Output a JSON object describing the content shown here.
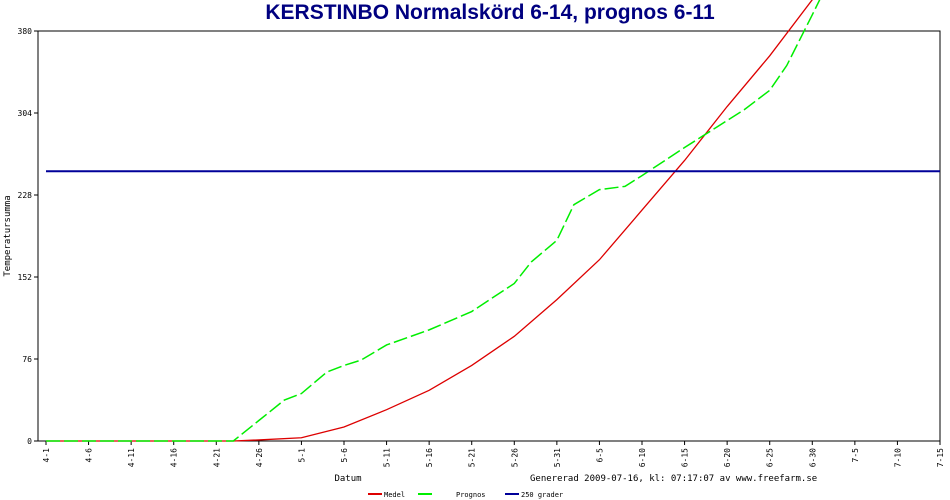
{
  "chart_data": {
    "type": "line",
    "title": "KERSTINBO Normalskörd 6-14, prognos 6-11",
    "x_label": "Datum",
    "y_label": "Temperatursumma",
    "footer": "Genererad 2009-07-16, kl: 07:17:07 av www.freefarm.se",
    "xlim": [
      0,
      105
    ],
    "ylim": [
      0,
      380
    ],
    "xticks": [
      {
        "value": 0,
        "label": "4-1"
      },
      {
        "value": 5,
        "label": "4-6"
      },
      {
        "value": 10,
        "label": "4-11"
      },
      {
        "value": 15,
        "label": "4-16"
      },
      {
        "value": 20,
        "label": "4-21"
      },
      {
        "value": 25,
        "label": "4-26"
      },
      {
        "value": 30,
        "label": "5-1"
      },
      {
        "value": 35,
        "label": "5-6"
      },
      {
        "value": 40,
        "label": "5-11"
      },
      {
        "value": 45,
        "label": "5-16"
      },
      {
        "value": 50,
        "label": "5-21"
      },
      {
        "value": 55,
        "label": "5-26"
      },
      {
        "value": 60,
        "label": "5-31"
      },
      {
        "value": 65,
        "label": "6-5"
      },
      {
        "value": 70,
        "label": "6-10"
      },
      {
        "value": 75,
        "label": "6-15"
      },
      {
        "value": 80,
        "label": "6-20"
      },
      {
        "value": 85,
        "label": "6-25"
      },
      {
        "value": 90,
        "label": "6-30"
      },
      {
        "value": 95,
        "label": "7-5"
      },
      {
        "value": 100,
        "label": "7-10"
      },
      {
        "value": 105,
        "label": "7-15"
      }
    ],
    "yticks": [
      0,
      76,
      152,
      228,
      304,
      380
    ],
    "series": [
      {
        "name": "Medel",
        "color": "#dd0000",
        "dashed": false,
        "x": [
          0,
          22,
          25,
          30,
          35,
          40,
          45,
          50,
          55,
          60,
          65,
          70,
          75,
          80,
          85,
          90
        ],
        "values": [
          0,
          0,
          1,
          3,
          13,
          29,
          47,
          70,
          97,
          131,
          168,
          214,
          260,
          310,
          357,
          409
        ]
      },
      {
        "name": "Prognos",
        "color": "#00ee00",
        "dashed": true,
        "x": [
          0,
          22,
          25,
          28,
          30,
          33,
          35,
          37,
          40,
          45,
          50,
          55,
          57,
          60,
          62,
          65,
          68,
          70,
          75,
          80,
          82,
          85,
          87,
          90,
          91
        ],
        "values": [
          0,
          0,
          19,
          38,
          44,
          64,
          70,
          75,
          89,
          103,
          120,
          146,
          166,
          186,
          219,
          233,
          236,
          246,
          272,
          297,
          307,
          325,
          348,
          395,
          411
        ]
      },
      {
        "name": "250 grader",
        "color": "#000099",
        "dashed": false,
        "x": [
          0,
          105
        ],
        "values": [
          250,
          250
        ]
      }
    ]
  }
}
